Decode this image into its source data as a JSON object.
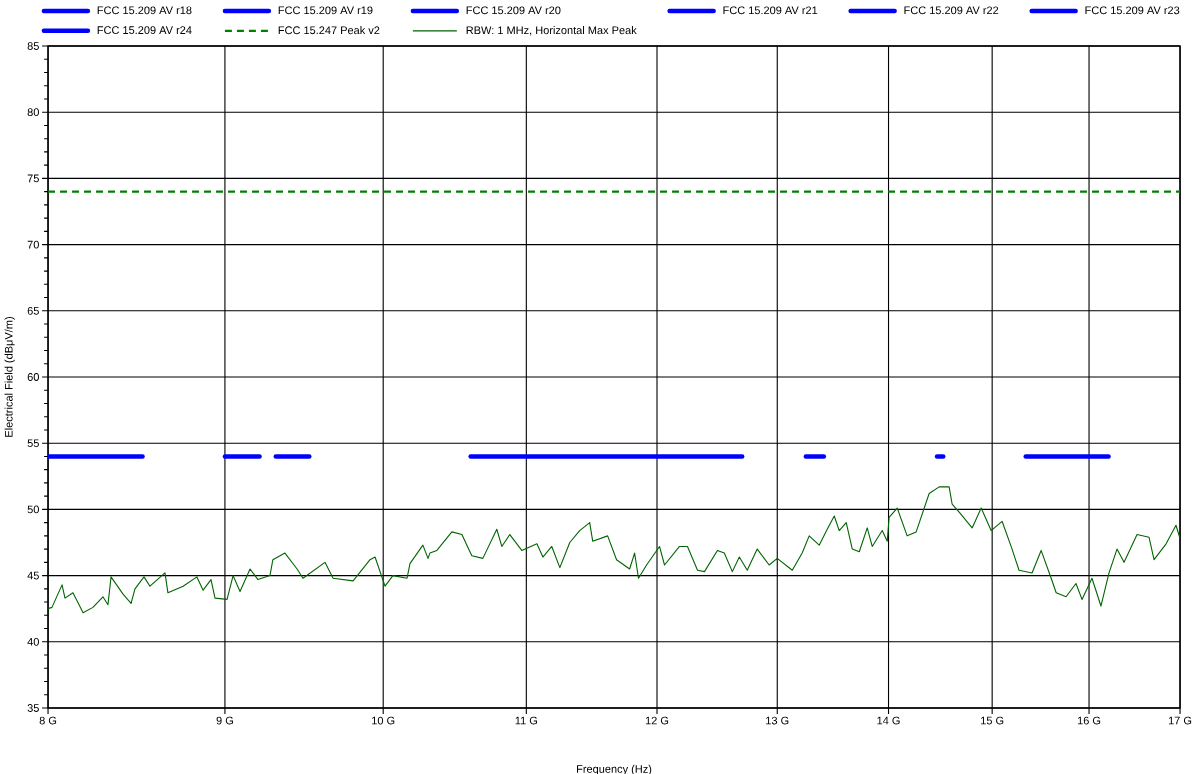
{
  "chart_data": {
    "type": "line",
    "xlabel": "Frequency (Hz)",
    "ylabel": "Electrical Field (dBμV/m)",
    "log": "x",
    "grid": true,
    "legend": "top",
    "marker": "none",
    "xlim": [
      8,
      17
    ],
    "ylim": [
      35,
      85
    ],
    "xticks": [
      {
        "value": 8,
        "label": "8 G"
      },
      {
        "value": 9,
        "label": "9 G"
      },
      {
        "value": 10,
        "label": "10 G"
      },
      {
        "value": 11,
        "label": "11 G"
      },
      {
        "value": 12,
        "label": "12 G"
      },
      {
        "value": 13,
        "label": "13 G"
      },
      {
        "value": 14,
        "label": "14 G"
      },
      {
        "value": 15,
        "label": "15 G"
      },
      {
        "value": 16,
        "label": "16 G"
      },
      {
        "value": 17,
        "label": "17 G"
      }
    ],
    "yticks": [
      35,
      40,
      45,
      50,
      55,
      60,
      65,
      70,
      75,
      80,
      85
    ],
    "series": [
      {
        "name": "FCC 15.209 AV r18",
        "color": "#0000ff",
        "x": [
          8.0,
          8.52
        ],
        "values": [
          54,
          54
        ]
      },
      {
        "name": "FCC 15.209 AV r19",
        "color": "#0000ff",
        "x": [
          9.0,
          9.21
        ],
        "values": [
          54,
          54
        ]
      },
      {
        "name": "FCC 15.209 AV r20",
        "color": "#0000ff",
        "x": [
          9.31,
          9.52
        ],
        "values": [
          54,
          54
        ]
      },
      {
        "name": "FCC 15.209 AV r21",
        "color": "#0000ff",
        "x": [
          10.6,
          12.7
        ],
        "values": [
          54,
          54
        ]
      },
      {
        "name": "FCC 15.209 AV r22",
        "color": "#0000ff",
        "x": [
          13.25,
          13.41
        ],
        "values": [
          54,
          54
        ]
      },
      {
        "name": "FCC 15.209 AV r23",
        "color": "#0000ff",
        "x": [
          14.46,
          14.52
        ],
        "values": [
          54,
          54
        ]
      },
      {
        "name": "FCC 15.209 AV r24",
        "color": "#0000ff",
        "x": [
          15.34,
          16.21
        ],
        "values": [
          54,
          54
        ]
      },
      {
        "name": "FCC 15.247 Peak v2",
        "color": "#008000",
        "line_style": "dashed",
        "x": [
          8,
          17
        ],
        "values": [
          74,
          74
        ]
      },
      {
        "name": "RBW: 1 MHz, Horizontal Max Peak",
        "color": "#006400",
        "x": [
          8.0,
          8.021,
          8.075,
          8.091,
          8.134,
          8.189,
          8.243,
          8.298,
          8.326,
          8.343,
          8.41,
          8.455,
          8.477,
          8.528,
          8.562,
          8.648,
          8.665,
          8.753,
          8.834,
          8.87,
          8.917,
          8.941,
          9.013,
          9.049,
          9.091,
          9.152,
          9.2,
          9.274,
          9.292,
          9.367,
          9.443,
          9.48,
          9.62,
          9.672,
          9.802,
          9.913,
          9.946,
          10.012,
          10.065,
          10.16,
          10.18,
          10.268,
          10.303,
          10.316,
          10.364,
          10.468,
          10.538,
          10.608,
          10.686,
          10.786,
          10.822,
          10.88,
          10.967,
          11.078,
          11.122,
          11.188,
          11.248,
          11.323,
          11.398,
          11.474,
          11.497,
          11.612,
          11.681,
          11.783,
          11.822,
          11.853,
          11.917,
          12.02,
          12.06,
          12.181,
          12.246,
          12.328,
          12.385,
          12.492,
          12.55,
          12.617,
          12.676,
          12.743,
          12.828,
          12.931,
          13.0,
          13.131,
          13.218,
          13.28,
          13.368,
          13.44,
          13.503,
          13.548,
          13.611,
          13.666,
          13.73,
          13.803,
          13.849,
          13.942,
          13.988,
          14.006,
          14.081,
          14.175,
          14.26,
          14.384,
          14.48,
          14.577,
          14.606,
          14.674,
          14.802,
          14.891,
          14.99,
          15.1,
          15.201,
          15.271,
          15.404,
          15.497,
          15.601,
          15.653,
          15.757,
          15.862,
          15.925,
          16.032,
          16.128,
          16.214,
          16.301,
          16.377,
          16.519,
          16.652,
          16.707,
          16.842,
          16.954,
          17.0
        ],
        "values": [
          42.5,
          42.6,
          44.3,
          43.3,
          43.7,
          42.2,
          42.6,
          43.4,
          42.8,
          44.9,
          43.6,
          42.9,
          44.0,
          44.9,
          44.2,
          45.2,
          43.7,
          44.2,
          44.9,
          43.9,
          44.7,
          43.3,
          43.2,
          45.0,
          43.8,
          45.5,
          44.7,
          45.0,
          46.2,
          46.7,
          45.5,
          44.8,
          46.0,
          44.8,
          44.6,
          46.2,
          46.4,
          44.2,
          45.0,
          44.8,
          45.9,
          47.3,
          46.3,
          46.7,
          46.9,
          48.3,
          48.1,
          46.5,
          46.3,
          48.5,
          47.2,
          48.1,
          46.9,
          47.4,
          46.4,
          47.2,
          45.6,
          47.5,
          48.4,
          49.0,
          47.6,
          48.0,
          46.2,
          45.5,
          46.7,
          44.8,
          45.8,
          47.2,
          45.8,
          47.2,
          47.2,
          45.4,
          45.3,
          46.9,
          46.7,
          45.3,
          46.4,
          45.4,
          47.0,
          45.8,
          46.3,
          45.4,
          46.7,
          48.0,
          47.3,
          48.5,
          49.5,
          48.4,
          49.0,
          47.0,
          46.8,
          48.6,
          47.2,
          48.4,
          47.6,
          49.4,
          50.1,
          48.0,
          48.3,
          51.2,
          51.7,
          51.7,
          50.4,
          49.8,
          48.6,
          50.1,
          48.4,
          49.1,
          47.0,
          45.4,
          45.2,
          46.9,
          44.8,
          43.7,
          43.4,
          44.4,
          43.2,
          44.8,
          42.7,
          45.2,
          47.0,
          46.0,
          48.1,
          47.9,
          46.2,
          47.4,
          48.8,
          47.8
        ]
      }
    ]
  }
}
